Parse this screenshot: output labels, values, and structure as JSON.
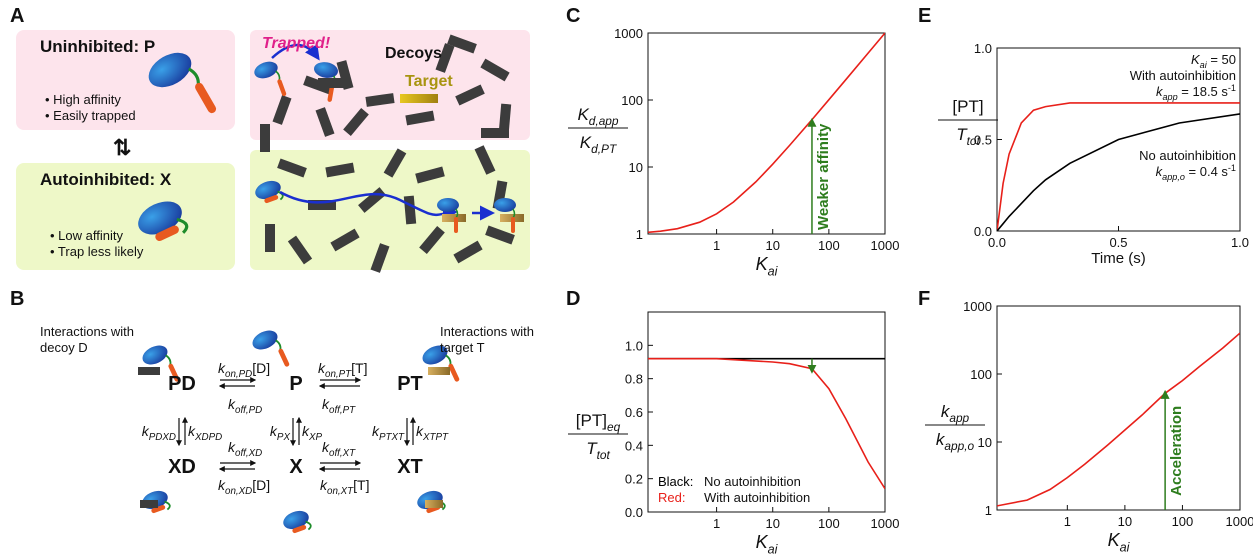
{
  "panel_labels": [
    "A",
    "B",
    "C",
    "D",
    "E",
    "F"
  ],
  "panel_a": {
    "uninhibited": {
      "title": "Uninhibited: P",
      "bullets": [
        "• High affinity",
        "• Easily trapped"
      ]
    },
    "autoinhibited": {
      "title": "Autoinhibited: X",
      "bullets": [
        "• Low affinity",
        "• Trap less likely"
      ]
    },
    "trapped": "Trapped!",
    "decoys": "Decoys",
    "target": "Target"
  },
  "panel_b": {
    "left_note": [
      "Interactions with",
      "decoy D"
    ],
    "right_note": [
      "Interactions with",
      "target T"
    ],
    "species": [
      "PD",
      "P",
      "PT",
      "XD",
      "X",
      "XT"
    ],
    "rates": [
      [
        "k",
        "on,PD",
        "[D]"
      ],
      [
        "k",
        "off,PD"
      ],
      [
        "k",
        "on,PT",
        "[T]"
      ],
      [
        "k",
        "off,PT"
      ],
      [
        "k",
        "PDXD"
      ],
      [
        "k",
        "XDPD"
      ],
      [
        "k",
        "PX"
      ],
      [
        "k",
        "XP"
      ],
      [
        "k",
        "PTXT"
      ],
      [
        "k",
        "XTPT"
      ],
      [
        "k",
        "off,XD"
      ],
      [
        "k",
        "on,XD",
        "[D]"
      ],
      [
        "k",
        "off,XT"
      ],
      [
        "k",
        "on,XT",
        "[T]"
      ]
    ]
  },
  "chart_data": [
    {
      "type": "line",
      "xscale": "log",
      "yscale": "log",
      "xlabel": [
        "K",
        "ai"
      ],
      "ylabel": {
        "numerator": [
          "K",
          "d,app"
        ],
        "denominator": [
          "K",
          "d,PT"
        ]
      },
      "xlim": [
        0.06,
        1000
      ],
      "ylim": [
        1,
        1000
      ],
      "xticks": [
        1,
        10,
        100,
        1000
      ],
      "yticks": [
        1,
        10,
        100,
        1000
      ],
      "x": [
        0.06,
        0.1,
        0.2,
        0.5,
        1,
        2,
        5,
        10,
        20,
        50,
        100,
        200,
        500,
        1000
      ],
      "series": [
        {
          "color": "#e8201a",
          "values": [
            1.06,
            1.1,
            1.2,
            1.5,
            2,
            3,
            6,
            11,
            21,
            51,
            101,
            201,
            501,
            1001
          ]
        }
      ],
      "annotation": {
        "text": "Weaker affinity",
        "color": "#2e7d1e",
        "x": 50,
        "y": [
          1,
          51
        ]
      }
    },
    {
      "type": "line",
      "xscale": "log",
      "yscale": "linear",
      "xlabel": [
        "K",
        "ai"
      ],
      "ylabel": {
        "numerator": [
          "[PT]",
          "eq"
        ],
        "denominator": [
          "T",
          "tot"
        ]
      },
      "xlim": [
        0.06,
        1000
      ],
      "ylim": [
        0,
        1.2
      ],
      "xticks": [
        1,
        10,
        100,
        1000
      ],
      "yticks": [
        {
          "value": 0,
          "label": "0.0"
        },
        {
          "value": 0.2,
          "label": "0.2"
        },
        {
          "value": 0.4,
          "label": "0.4"
        },
        {
          "value": 0.6,
          "label": "0.6"
        },
        {
          "value": 0.8,
          "label": "0.8"
        },
        {
          "value": 1,
          "label": "1.0"
        }
      ],
      "x": [
        0.06,
        1,
        10,
        20,
        50,
        100,
        200,
        500,
        1000
      ],
      "legend_labels": [
        "Black:",
        "Red:"
      ],
      "series": [
        {
          "name": "No autoinhibition",
          "color": "#000000",
          "values": [
            0.92,
            0.92,
            0.92,
            0.92,
            0.92,
            0.92,
            0.92,
            0.92,
            0.92
          ]
        },
        {
          "name": "With autoinhibition",
          "color": "#e8201a",
          "values": [
            0.92,
            0.92,
            0.9,
            0.89,
            0.86,
            0.74,
            0.56,
            0.3,
            0.14
          ]
        }
      ],
      "annotation": {
        "color": "#2e7d1e",
        "x": 50,
        "y": [
          0.92,
          0.84
        ]
      }
    },
    {
      "type": "line",
      "xscale": "linear",
      "yscale": "linear",
      "xlabel": [
        "Time (s)"
      ],
      "ylabel": {
        "numerator": [
          "[PT]"
        ],
        "denominator": [
          "T",
          "tot"
        ]
      },
      "xlim": [
        0,
        1
      ],
      "ylim": [
        0,
        1
      ],
      "xticks": [
        {
          "value": 0,
          "label": "0.0"
        },
        {
          "value": 0.5,
          "label": "0.5"
        },
        {
          "value": 1,
          "label": "1.0"
        }
      ],
      "yticks": [
        {
          "value": 0,
          "label": "0.0"
        },
        {
          "value": 0.5,
          "label": "0.5"
        },
        {
          "value": 1,
          "label": "1.0"
        }
      ],
      "x": [
        0,
        0.025,
        0.05,
        0.1,
        0.15,
        0.2,
        0.3,
        0.5,
        0.75,
        1
      ],
      "series": [
        {
          "name": "With autoinhibition",
          "color": "#e8201a",
          "values": [
            0,
            0.26,
            0.42,
            0.59,
            0.66,
            0.68,
            0.7,
            0.7,
            0.7,
            0.7
          ]
        },
        {
          "name": "No autoinhibition",
          "color": "#000000",
          "values": [
            0,
            0.04,
            0.08,
            0.15,
            0.22,
            0.28,
            0.37,
            0.5,
            0.59,
            0.64
          ]
        }
      ],
      "annotations": [
        [
          "K",
          "ai",
          " = 50"
        ],
        [
          "k",
          "app",
          " = 18.5 s",
          "-1"
        ],
        [
          "k",
          "app,o",
          " = 0.4 s",
          "-1"
        ]
      ]
    },
    {
      "type": "line",
      "xscale": "log",
      "yscale": "log",
      "xlabel": [
        "K",
        "ai"
      ],
      "ylabel": {
        "numerator": [
          "k",
          "app"
        ],
        "denominator": [
          "k",
          "app,o"
        ]
      },
      "xlim": [
        0.06,
        1000
      ],
      "ylim": [
        1,
        1000
      ],
      "xticks": [
        1,
        10,
        100,
        1000
      ],
      "yticks": [
        1,
        10,
        100,
        1000
      ],
      "x": [
        0.06,
        0.2,
        0.5,
        1,
        2,
        5,
        10,
        20,
        50,
        100,
        200,
        500,
        1000
      ],
      "series": [
        {
          "color": "#e8201a",
          "values": [
            1.15,
            1.4,
            2,
            3,
            4.7,
            9,
            15,
            25,
            52,
            80,
            130,
            240,
            400
          ]
        }
      ],
      "annotation": {
        "text": "Acceleration",
        "color": "#2e7d1e",
        "x": 50,
        "y": [
          1,
          55
        ]
      }
    }
  ]
}
